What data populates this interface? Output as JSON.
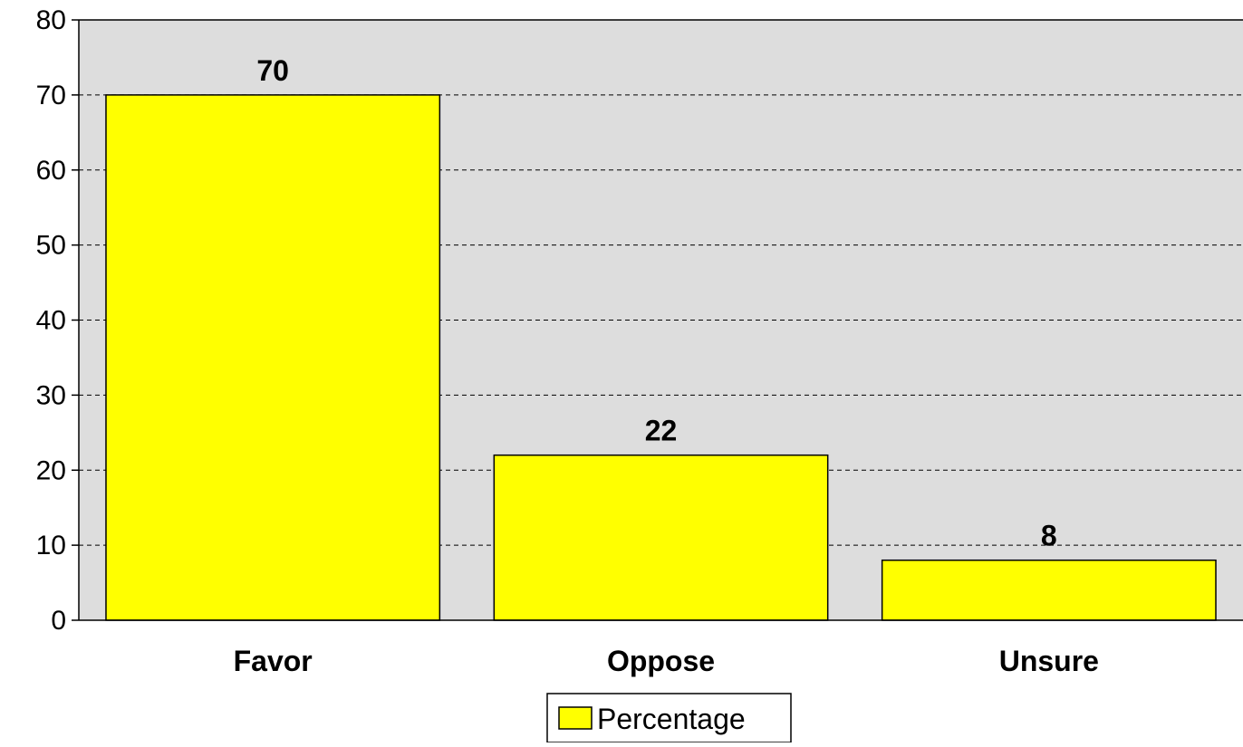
{
  "chart_data": {
    "type": "bar",
    "categories": [
      "Favor",
      "Oppose",
      "Unsure"
    ],
    "series": [
      {
        "name": "Percentage",
        "values": [
          70,
          22,
          8
        ]
      }
    ],
    "ylim": [
      0,
      80
    ],
    "yticks": [
      0,
      10,
      20,
      30,
      40,
      50,
      60,
      70,
      80
    ],
    "data_labels": [
      "70",
      "22",
      "8"
    ],
    "grid": "horizontal dashed",
    "legend": "bottom-center",
    "colors": {
      "bar": "#FFFF00",
      "plot_background": "#DDDDDD",
      "border": "#000000"
    }
  }
}
